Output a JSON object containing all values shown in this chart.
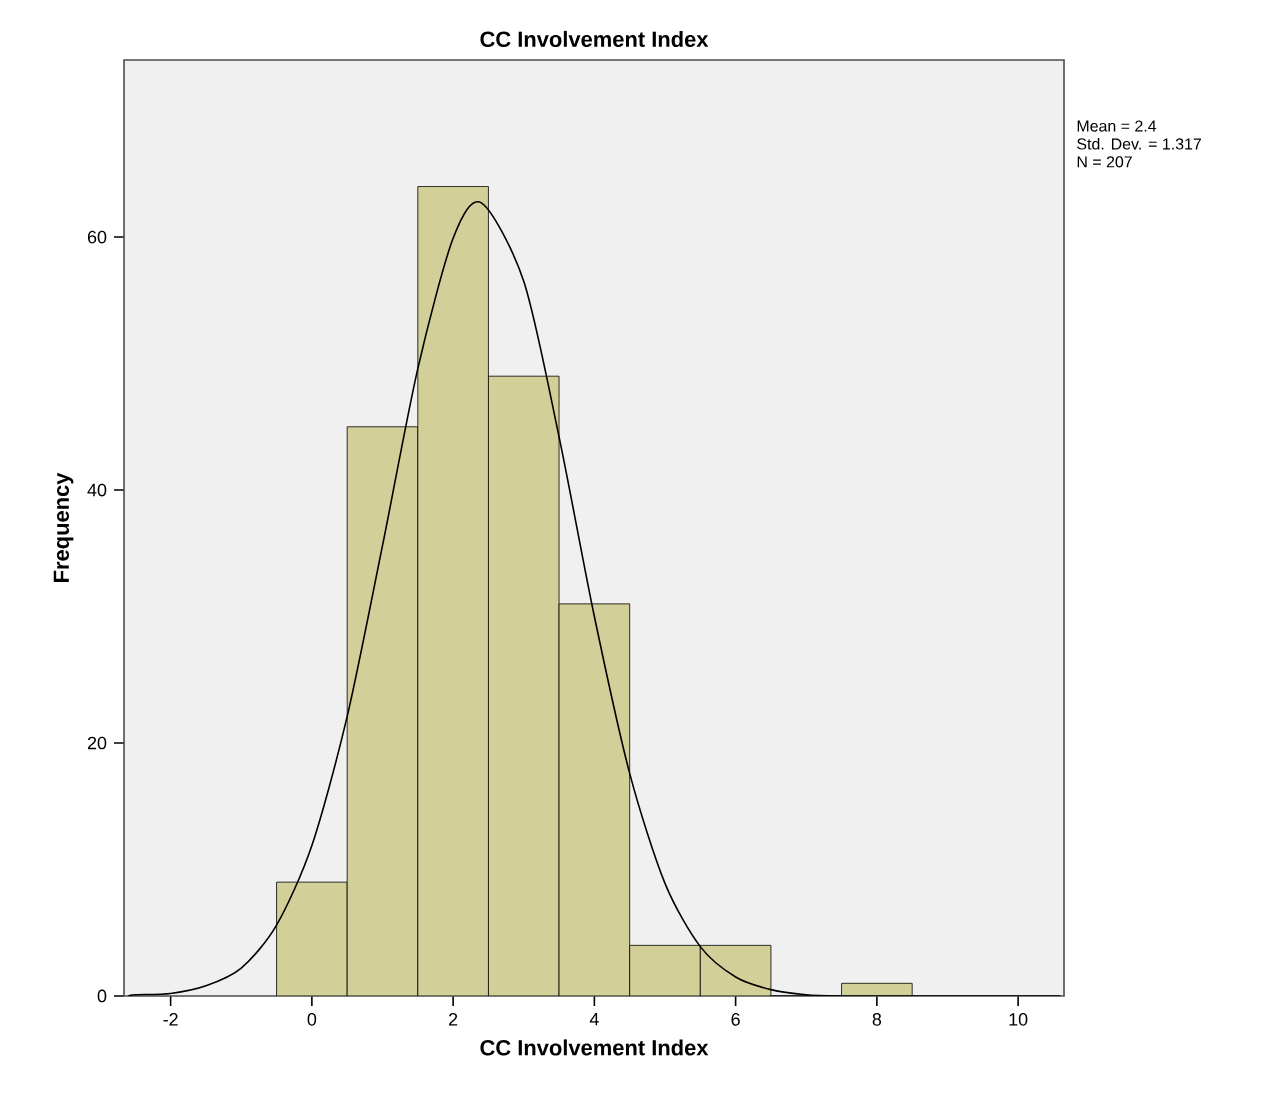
{
  "chart_data": {
    "type": "histogram",
    "title": "CC Involvement Index",
    "xlabel": "CC Involvement Index",
    "ylabel": "Frequency",
    "bins": [
      -0.5,
      0.5,
      1.5,
      2.5,
      3.5,
      4.5,
      5.5,
      6.5,
      7.5,
      8.5
    ],
    "values": [
      9,
      45,
      64,
      49,
      31,
      4,
      4,
      0,
      1
    ],
    "color": "#d3cf99",
    "series": [
      {
        "type": "line",
        "color": "#000000",
        "x": [
          -2.6,
          -2.5,
          -2,
          -1.5,
          -1,
          -0.5,
          0,
          0.5,
          1,
          1.5,
          2,
          2.4,
          3,
          3.5,
          4,
          4.5,
          5,
          5.5,
          6,
          6.5,
          7,
          7.5,
          8,
          9,
          10,
          10.6
        ],
        "values": [
          0,
          0.1,
          0.2,
          0.8,
          2.2,
          5.6,
          11.9,
          22.1,
          35.6,
          49.6,
          59.9,
          62.7,
          56.5,
          44.2,
          30.0,
          17.6,
          8.9,
          3.9,
          1.5,
          0.5,
          0.1,
          0,
          0,
          0,
          0,
          0
        ]
      }
    ],
    "xlim": [
      -2.66,
      10.65
    ],
    "ylim": [
      0,
      74
    ],
    "xticks": [
      -2,
      0,
      2,
      4,
      6,
      8,
      10
    ],
    "yticks": [
      0,
      20,
      40,
      60
    ],
    "grid": false,
    "annotations": [
      "Mean = 2.4",
      "Std. Dev. = 1.317",
      "N = 207"
    ]
  }
}
